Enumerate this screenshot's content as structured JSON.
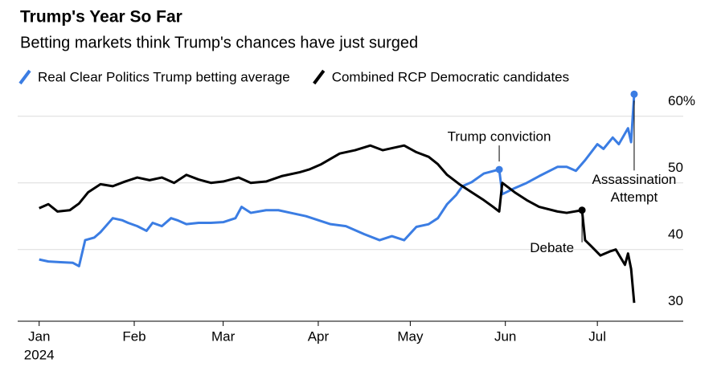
{
  "chart_data": {
    "type": "line",
    "title": "Trump's Year So Far",
    "subtitle": "Betting markets think Trump's chances have just surged",
    "xlim": [
      -7,
      210
    ],
    "xticks": [
      {
        "value": 0,
        "label": "Jan"
      },
      {
        "value": 31,
        "label": "Feb"
      },
      {
        "value": 60,
        "label": "Mar"
      },
      {
        "value": 91,
        "label": "Apr"
      },
      {
        "value": 121,
        "label": "May"
      },
      {
        "value": 152,
        "label": "Jun"
      },
      {
        "value": 182,
        "label": "Jul"
      }
    ],
    "x_year_label": "2024",
    "ylim": [
      29,
      64
    ],
    "yticks": [
      {
        "value": 30,
        "label": "30"
      },
      {
        "value": 40,
        "label": "40"
      },
      {
        "value": 50,
        "label": "50"
      },
      {
        "value": 60,
        "label": "60%"
      }
    ],
    "grid": true,
    "legend": "top",
    "series": [
      {
        "name": "Real Clear Politics Trump betting average",
        "color": "#3b7de3",
        "x": [
          0,
          3,
          7,
          11,
          13,
          15,
          18,
          20,
          24,
          27,
          29,
          32,
          35,
          37,
          40,
          43,
          45,
          48,
          52,
          56,
          60,
          64,
          66,
          69,
          74,
          78,
          82,
          87,
          91,
          95,
          100,
          106,
          111,
          115,
          119,
          123,
          127,
          130,
          133,
          136,
          138,
          141,
          145,
          150,
          151,
          155,
          159,
          163,
          169,
          172,
          175,
          178,
          182,
          184,
          187,
          189,
          192,
          193,
          194
        ],
        "values": [
          38.5,
          38.2,
          38.1,
          38.0,
          37.5,
          41.4,
          41.8,
          42.6,
          44.7,
          44.4,
          44.0,
          43.5,
          42.8,
          44.0,
          43.5,
          44.7,
          44.4,
          43.8,
          44.0,
          44.0,
          44.1,
          44.7,
          46.4,
          45.5,
          45.9,
          45.9,
          45.5,
          45.0,
          44.4,
          43.8,
          43.5,
          42.3,
          41.4,
          42.0,
          41.4,
          43.4,
          43.8,
          44.7,
          46.8,
          48.2,
          49.5,
          50.1,
          51.4,
          52.0,
          48.3,
          49.2,
          50.0,
          51.0,
          52.4,
          52.4,
          51.8,
          53.4,
          55.8,
          55.1,
          56.8,
          55.8,
          58.2,
          56.1,
          63.3
        ]
      },
      {
        "name": "Combined RCP Democratic candidates",
        "color": "#000000",
        "x": [
          0,
          3,
          6,
          10,
          13,
          16,
          20,
          24,
          28,
          32,
          36,
          40,
          44,
          48,
          52,
          56,
          60,
          65,
          69,
          74,
          79,
          85,
          88,
          92,
          98,
          103,
          108,
          112,
          116,
          119,
          123,
          127,
          130,
          133,
          137,
          141,
          145,
          148,
          150,
          151,
          155,
          159,
          163,
          169,
          172,
          177,
          178,
          180,
          183,
          186,
          188,
          191,
          192,
          193,
          194
        ],
        "values": [
          46.2,
          46.8,
          45.7,
          45.9,
          46.9,
          48.6,
          49.8,
          49.5,
          50.2,
          50.8,
          50.4,
          50.8,
          50.0,
          51.2,
          50.5,
          50.0,
          50.2,
          50.8,
          50.0,
          50.2,
          51.0,
          51.6,
          52.0,
          52.8,
          54.4,
          54.9,
          55.6,
          54.9,
          55.3,
          55.6,
          54.6,
          53.9,
          52.8,
          51.2,
          49.8,
          48.6,
          47.4,
          46.4,
          45.7,
          50.0,
          48.6,
          47.4,
          46.4,
          45.7,
          45.5,
          45.9,
          41.4,
          40.5,
          39.1,
          39.7,
          40.0,
          37.7,
          39.4,
          37.1,
          32.0
        ]
      }
    ],
    "annotations": [
      {
        "text": [
          "Trump conviction"
        ],
        "x": 150,
        "y": 52.0,
        "color": "#3b7de3"
      },
      {
        "text": [
          "Debate"
        ],
        "x": 177,
        "y": 45.9,
        "color": "#000000"
      },
      {
        "text": [
          "Assassination",
          "Attempt"
        ],
        "x": 194,
        "y": 63.3,
        "color": "#3b7de3"
      }
    ]
  }
}
